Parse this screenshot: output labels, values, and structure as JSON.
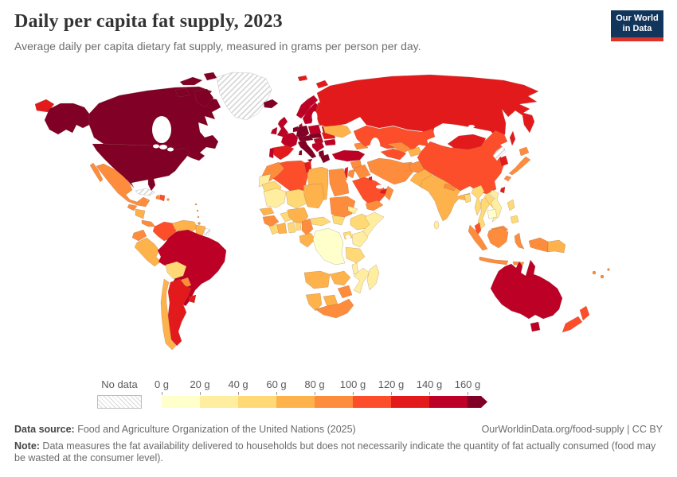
{
  "header": {
    "title": "Daily per capita fat supply, 2023",
    "subtitle": "Average daily per capita dietary fat supply, measured in grams per person per day.",
    "logo": {
      "line1": "Our World",
      "line2": "in Data"
    }
  },
  "legend": {
    "no_data_label": "No data",
    "tick_labels": [
      "0 g",
      "20 g",
      "40 g",
      "60 g",
      "80 g",
      "100 g",
      "120 g",
      "140 g",
      "160 g"
    ],
    "bin_labels": [
      "0-20",
      "20-40",
      "40-60",
      "60-80",
      "80-100",
      "100-120",
      "120-140",
      "140-160",
      "160+"
    ],
    "colors": [
      "#ffffcc",
      "#ffeda0",
      "#fed976",
      "#feb24c",
      "#fd8d3c",
      "#fc4e2a",
      "#e31a1c",
      "#bd0026",
      "#800026"
    ]
  },
  "footer": {
    "data_source_label": "Data source:",
    "data_source_text": " Food and Agriculture Organization of the United Nations (2025)",
    "citation": "OurWorldinData.org/food-supply | CC BY",
    "note_label": "Note:",
    "note_text": " Data measures the fat availability delivered to households but does not necessarily indicate the quantity of fat actually consumed (food may be wasted at the consumer level)."
  },
  "chart_data": {
    "type": "choropleth",
    "title": "Daily per capita fat supply, 2023",
    "subtitle": "Average daily per capita dietary fat supply, measured in grams per person per day.",
    "unit": "grams per person per day",
    "year": 2023,
    "bin_edges_g": [
      0,
      20,
      40,
      60,
      80,
      100,
      120,
      140,
      160
    ],
    "open_ended_top_bin": "160+",
    "no_data_style": "diagonal-hatch",
    "palette": {
      "0-20": "#ffffcc",
      "20-40": "#ffeda0",
      "40-60": "#fed976",
      "60-80": "#feb24c",
      "80-100": "#fd8d3c",
      "100-120": "#fc4e2a",
      "120-140": "#e31a1c",
      "140-160": "#bd0026",
      "160+": "#800026"
    },
    "country_bins": {
      "canada": "160+",
      "usa": "160+",
      "alaska": "160+",
      "greenland": "no-data",
      "iceland": "160+",
      "mexico": "80-100",
      "guatemala": "80-100",
      "honduras-nicaragua": "60-80",
      "costa-rica-panama": "80-100",
      "cuba": "no-data",
      "jamaica": "60-80",
      "haiti": "80-100",
      "dominican-republic": "100-120",
      "puerto-rico": "80-100",
      "lesser-antilles": "80-100",
      "trinidad": "80-100",
      "colombia": "100-120",
      "venezuela": "60-80",
      "guyana-suriname": "60-80",
      "french-guiana": "no-data",
      "ecuador": "80-100",
      "peru": "60-80",
      "bolivia": "40-60",
      "brazil": "140-160",
      "paraguay": "80-100",
      "chile": "60-80",
      "argentina": "120-140",
      "uruguay": "120-140",
      "uk": "140-160",
      "ireland": "140-160",
      "norway": "140-160",
      "sweden": "140-160",
      "finland": "120-140",
      "denmark": "140-160",
      "baltics": "120-140",
      "belarus": "140-160",
      "poland": "140-160",
      "germany": "160+",
      "benelux": "160+",
      "france": "140-160",
      "spain": "120-140",
      "portugal": "140-160",
      "switzerland-austria": "160+",
      "czech-slovakia": "160+",
      "hungary": "140-160",
      "italy": "160+",
      "balkans": "140-160",
      "albania-macedonia": "160+",
      "greece": "160+",
      "romania": "120-140",
      "bulgaria": "140-160",
      "ukraine": "60-80",
      "turkey": "140-160",
      "caucasus": "80-100",
      "svalbard": "120-140",
      "novaya-zemlya": "120-140",
      "russia": "120-140",
      "russia-wrap": "120-140",
      "sakhalin": "120-140",
      "kazakhstan": "100-120",
      "turkmenistan": "100-120",
      "uzbekistan": "80-100",
      "kyrgyzstan-tajikistan": "60-80",
      "syria": "80-100",
      "iraq": "80-100",
      "israel-lebanon": "120-140",
      "jordan": "80-100",
      "saudi-arabia": "100-120",
      "kuwait": "120-140",
      "uae-qatar": "120-140",
      "oman": "80-100",
      "yemen": "80-100",
      "iran": "80-100",
      "afghanistan": "80-100",
      "pakistan": "60-80",
      "india": "60-80",
      "nepal": "80-100",
      "bangladesh": "40-60",
      "sri-lanka": "20-40",
      "myanmar": "40-60",
      "thailand": "40-60",
      "laos": "40-60",
      "vietnam": "20-40",
      "cambodia": "0-20",
      "malaysia": "100-120",
      "malaysia-borneo": "80-100",
      "indonesia": "80-100",
      "philippines": "40-60",
      "papua-indonesia": "80-100",
      "papua-new-guinea": "60-80",
      "china": "100-120",
      "mongolia": "120-140",
      "north-korea": "no-data",
      "south-korea": "120-140",
      "japan": "80-100",
      "taiwan": "120-140",
      "australia": "140-160",
      "new-zealand": "100-120",
      "fiji-pacific": "80-100",
      "morocco": "80-100",
      "algeria": "100-120",
      "tunisia": "120-140",
      "libya": "60-80",
      "egypt": "80-100",
      "western-sahara": "20-40",
      "mauritania": "40-60",
      "mali": "20-40",
      "niger": "40-60",
      "chad": "60-80",
      "sudan": "80-100",
      "south-sudan": "40-60",
      "eritrea": "20-40",
      "ethiopia": "40-60",
      "somalia": "20-40",
      "senegal": "60-80",
      "guinea-group": "80-100",
      "sierra-leone-liberia": "40-60",
      "ivory-coast": "60-80",
      "ghana": "40-60",
      "togo-benin": "40-60",
      "burkina-faso": "40-60",
      "nigeria": "60-80",
      "cameroon": "80-100",
      "central-african-republic": "40-60",
      "gabon-congo": "60-80",
      "drc": "0-20",
      "uganda": "40-60",
      "kenya": "20-40",
      "tanzania": "40-60",
      "angola": "60-80",
      "zambia": "60-80",
      "malawi": "20-40",
      "mozambique": "20-40",
      "zimbabwe": "80-100",
      "namibia": "60-80",
      "botswana": "60-80",
      "south-africa": "80-100",
      "madagascar": "20-40"
    }
  }
}
